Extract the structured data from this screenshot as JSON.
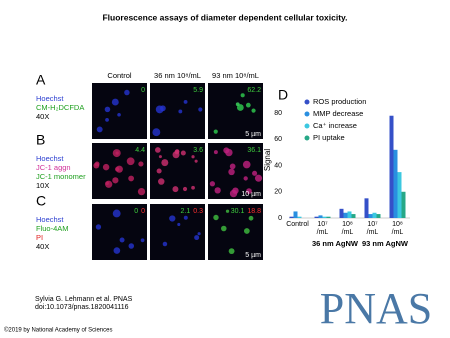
{
  "title": "Fluorescence assays of diameter dependent cellular toxicity.",
  "columns": [
    "Control",
    "36 nm 10⁸/mL",
    "93 nm 10⁸/mL"
  ],
  "panels": [
    {
      "label": "A",
      "stains": [
        {
          "text": "Hoechst",
          "color": "#2c3fd0"
        },
        {
          "text": "CM-H₂DCFDA",
          "color": "#1fa01f"
        },
        {
          "text": "40X",
          "color": "#000000"
        }
      ],
      "readouts": [
        [
          {
            "text": "0",
            "color": "#3fd03f"
          }
        ],
        [
          {
            "text": "5.9",
            "color": "#3fd03f"
          }
        ],
        [
          {
            "text": "62.2",
            "color": "#3fd03f"
          }
        ]
      ],
      "scale": "5 µm"
    },
    {
      "label": "B",
      "stains": [
        {
          "text": "Hoechst",
          "color": "#2c3fd0"
        },
        {
          "text": "JC-1 aggn",
          "color": "#d0309a"
        },
        {
          "text": "JC-1 monomer",
          "color": "#1fa01f"
        },
        {
          "text": "10X",
          "color": "#000000"
        }
      ],
      "readouts": [
        [
          {
            "text": "4.4",
            "color": "#3fd03f"
          }
        ],
        [
          {
            "text": "3.6",
            "color": "#3fd03f"
          }
        ],
        [
          {
            "text": "36.1",
            "color": "#3fd03f"
          }
        ]
      ],
      "scale": "10 µm"
    },
    {
      "label": "C",
      "stains": [
        {
          "text": "Hoechst",
          "color": "#2c3fd0"
        },
        {
          "text": "Fluo-4AM",
          "color": "#1fa01f"
        },
        {
          "text": "PI",
          "color": "#e02020"
        },
        {
          "text": "40X",
          "color": "#000000"
        }
      ],
      "readouts": [
        [
          {
            "text": "0",
            "color": "#3fd03f"
          },
          {
            "text": "0",
            "color": "#ff3030"
          }
        ],
        [
          {
            "text": "2.1",
            "color": "#3fd03f"
          },
          {
            "text": "0.3",
            "color": "#ff3030"
          }
        ],
        [
          {
            "text": "30.1",
            "color": "#3fd03f"
          },
          {
            "text": "18.8",
            "color": "#ff3030"
          }
        ]
      ],
      "scale": "5 µm"
    }
  ],
  "chart_data": {
    "type": "bar",
    "label": "D",
    "y_label": "Signal",
    "categories": [
      "Control",
      "10⁷\n/mL",
      "10⁸\n/mL",
      "10⁷\n/mL",
      "10⁸\n/mL"
    ],
    "groups": [
      "36 nm AgNW",
      "93 nm AgNW"
    ],
    "series": [
      {
        "name": "ROS production",
        "color": "#3550c8",
        "values": [
          1,
          1,
          7,
          15,
          78
        ]
      },
      {
        "name": "MMP decrease",
        "color": "#2a8fe0",
        "values": [
          5,
          2,
          4,
          3,
          52
        ]
      },
      {
        "name": "Ca⁺ increase",
        "color": "#3cc8e0",
        "values": [
          1,
          1,
          5,
          4,
          35
        ]
      },
      {
        "name": "PI uptake",
        "color": "#27a887",
        "values": [
          0,
          1,
          3,
          3,
          20
        ]
      }
    ],
    "ylim": [
      0,
      90
    ],
    "yticks": [
      0,
      20,
      40,
      60,
      80
    ]
  },
  "citation": {
    "authors": "Sylvia G. Lehmann et al. PNAS",
    "doi": "doi:10.1073/pnas.1820041116"
  },
  "copyright": "©2019 by National Academy of Sciences",
  "logo": "PNAS"
}
